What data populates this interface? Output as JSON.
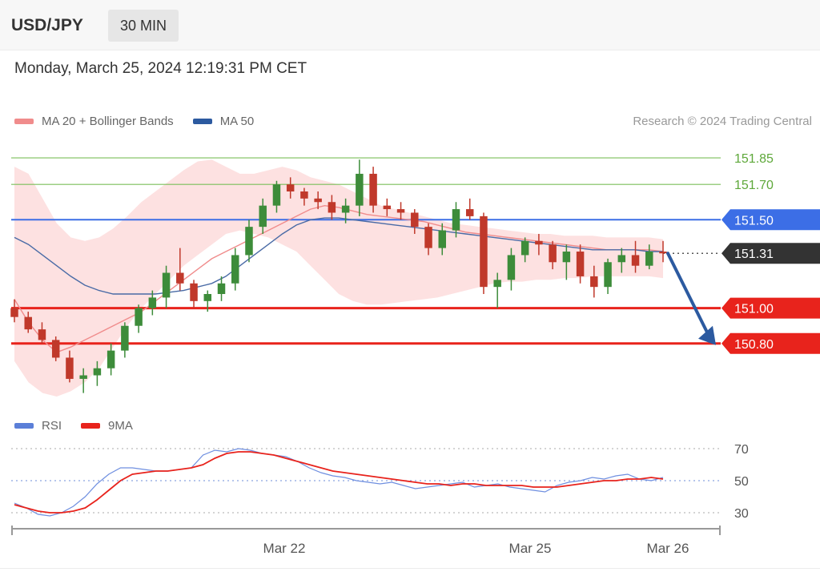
{
  "header": {
    "symbol": "USD/JPY",
    "timeframe": "30 MIN"
  },
  "datetime": "Monday, March 25, 2024 12:19:31 PM CET",
  "legend": [
    {
      "label": "MA 20 + Bollinger Bands",
      "color": "#f08c8c"
    },
    {
      "label": "MA 50",
      "color": "#2c5aa0"
    }
  ],
  "copyright": "Research © 2024 Trading Central",
  "rsi_legend": [
    {
      "label": "RSI",
      "color": "#5b7fd8"
    },
    {
      "label": "9MA",
      "color": "#e8231c"
    }
  ],
  "colors": {
    "up": "#3d8c3a",
    "down": "#c0392b",
    "support": "#e8231c",
    "resistance": "#7bbf5a",
    "pivot": "#3c6ee6",
    "current": "#333333",
    "forecast": "#2c5aa0"
  },
  "chart_data": [
    {
      "type": "line",
      "title": "",
      "xlabel": "",
      "ylabel": "",
      "ylim": [
        150.5,
        151.95
      ],
      "x_ticks": [
        "Mar 22",
        "Mar 25",
        "Mar 26"
      ],
      "levels": [
        {
          "value": 151.85,
          "label": "151.85",
          "kind": "resistance"
        },
        {
          "value": 151.7,
          "label": "151.70",
          "kind": "resistance"
        },
        {
          "value": 151.5,
          "label": "151.50",
          "kind": "pivot"
        },
        {
          "value": 151.31,
          "label": "151.31",
          "kind": "current"
        },
        {
          "value": 151.0,
          "label": "151.00",
          "kind": "support"
        },
        {
          "value": 150.8,
          "label": "150.80",
          "kind": "support"
        }
      ],
      "forecast": {
        "from": 151.31,
        "to": 150.8,
        "direction": "down"
      },
      "series": [
        {
          "name": "MA 20 + Bollinger Bands",
          "values": [
            151.05,
            150.92,
            150.82,
            150.75,
            150.78,
            150.82,
            150.86,
            150.9,
            150.94,
            150.98,
            151.04,
            151.1,
            151.16,
            151.22,
            151.28,
            151.32,
            151.36,
            151.4,
            151.44,
            151.48,
            151.52,
            151.56,
            151.58,
            151.57,
            151.55,
            151.53,
            151.52,
            151.51,
            151.5,
            151.49,
            151.47,
            151.45,
            151.43,
            151.42,
            151.41,
            151.4,
            151.39,
            151.38,
            151.37,
            151.36,
            151.35,
            151.34,
            151.33,
            151.33,
            151.33,
            151.33,
            151.32
          ]
        },
        {
          "name": "MA 50",
          "values": [
            151.4,
            151.36,
            151.3,
            151.24,
            151.18,
            151.13,
            151.1,
            151.08,
            151.08,
            151.08,
            151.08,
            151.09,
            151.1,
            151.12,
            151.14,
            151.18,
            151.24,
            151.3,
            151.36,
            151.42,
            151.47,
            151.5,
            151.51,
            151.51,
            151.5,
            151.49,
            151.48,
            151.47,
            151.46,
            151.45,
            151.44,
            151.43,
            151.42,
            151.41,
            151.4,
            151.39,
            151.38,
            151.37,
            151.36,
            151.35,
            151.34,
            151.33,
            151.33,
            151.33,
            151.33,
            151.32,
            151.32
          ]
        },
        {
          "name": "Bollinger upper",
          "values": [
            151.8,
            151.76,
            151.62,
            151.48,
            151.4,
            151.38,
            151.4,
            151.45,
            151.52,
            151.6,
            151.66,
            151.72,
            151.78,
            151.83,
            151.84,
            151.8,
            151.76,
            151.76,
            151.78,
            151.8,
            151.78,
            151.74,
            151.72,
            151.7,
            151.66,
            151.62,
            151.58,
            151.56,
            151.54,
            151.52,
            151.5,
            151.48,
            151.47,
            151.46,
            151.45,
            151.44,
            151.43,
            151.42,
            151.42,
            151.41,
            151.41,
            151.41,
            151.4,
            151.4,
            151.4,
            151.4,
            151.39
          ]
        },
        {
          "name": "Bollinger lower",
          "values": [
            150.7,
            150.58,
            150.52,
            150.5,
            150.53,
            150.58,
            150.66,
            150.78,
            150.9,
            151.0,
            151.08,
            151.16,
            151.24,
            151.3,
            151.36,
            151.42,
            151.44,
            151.42,
            151.4,
            151.36,
            151.32,
            151.24,
            151.16,
            151.08,
            151.04,
            151.02,
            151.02,
            151.03,
            151.04,
            151.05,
            151.06,
            151.08,
            151.1,
            151.12,
            151.14,
            151.15,
            151.15,
            151.16,
            151.16,
            151.17,
            151.17,
            151.18,
            151.18,
            151.18,
            151.18,
            151.18,
            151.17
          ]
        }
      ],
      "candles": [
        [
          151.0,
          151.05,
          150.92,
          150.95
        ],
        [
          150.95,
          150.98,
          150.86,
          150.88
        ],
        [
          150.88,
          150.92,
          150.8,
          150.82
        ],
        [
          150.82,
          150.84,
          150.7,
          150.72
        ],
        [
          150.72,
          150.76,
          150.58,
          150.6
        ],
        [
          150.6,
          150.66,
          150.52,
          150.62
        ],
        [
          150.62,
          150.7,
          150.56,
          150.66
        ],
        [
          150.66,
          150.8,
          150.62,
          150.76
        ],
        [
          150.76,
          150.92,
          150.72,
          150.9
        ],
        [
          150.9,
          151.02,
          150.86,
          151.0
        ],
        [
          151.0,
          151.1,
          150.96,
          151.06
        ],
        [
          151.06,
          151.24,
          151.0,
          151.2
        ],
        [
          151.2,
          151.34,
          151.1,
          151.14
        ],
        [
          151.14,
          151.16,
          151.0,
          151.04
        ],
        [
          151.04,
          151.1,
          150.98,
          151.08
        ],
        [
          151.08,
          151.18,
          151.04,
          151.14
        ],
        [
          151.14,
          151.34,
          151.1,
          151.3
        ],
        [
          151.3,
          151.5,
          151.26,
          151.46
        ],
        [
          151.46,
          151.62,
          151.42,
          151.58
        ],
        [
          151.58,
          151.72,
          151.54,
          151.7
        ],
        [
          151.7,
          151.74,
          151.62,
          151.66
        ],
        [
          151.66,
          151.68,
          151.58,
          151.62
        ],
        [
          151.62,
          151.66,
          151.56,
          151.6
        ],
        [
          151.6,
          151.64,
          151.5,
          151.54
        ],
        [
          151.54,
          151.62,
          151.48,
          151.58
        ],
        [
          151.58,
          151.84,
          151.52,
          151.76
        ],
        [
          151.76,
          151.8,
          151.54,
          151.58
        ],
        [
          151.58,
          151.62,
          151.52,
          151.56
        ],
        [
          151.56,
          151.6,
          151.5,
          151.54
        ],
        [
          151.54,
          151.56,
          151.42,
          151.46
        ],
        [
          151.46,
          151.48,
          151.3,
          151.34
        ],
        [
          151.34,
          151.48,
          151.3,
          151.44
        ],
        [
          151.44,
          151.6,
          151.4,
          151.56
        ],
        [
          151.56,
          151.62,
          151.5,
          151.52
        ],
        [
          151.52,
          151.54,
          151.08,
          151.12
        ],
        [
          151.12,
          151.2,
          151.0,
          151.16
        ],
        [
          151.16,
          151.34,
          151.1,
          151.3
        ],
        [
          151.3,
          151.4,
          151.26,
          151.38
        ],
        [
          151.38,
          151.42,
          151.3,
          151.36
        ],
        [
          151.36,
          151.38,
          151.22,
          151.26
        ],
        [
          151.26,
          151.36,
          151.16,
          151.32
        ],
        [
          151.32,
          151.36,
          151.14,
          151.18
        ],
        [
          151.18,
          151.24,
          151.06,
          151.12
        ],
        [
          151.12,
          151.28,
          151.08,
          151.26
        ],
        [
          151.26,
          151.34,
          151.2,
          151.3
        ],
        [
          151.3,
          151.38,
          151.2,
          151.24
        ],
        [
          151.24,
          151.36,
          151.22,
          151.32
        ],
        [
          151.32,
          151.38,
          151.26,
          151.31
        ]
      ]
    },
    {
      "type": "line",
      "title": "",
      "ylim": [
        20,
        75
      ],
      "y_ticks": [
        70,
        50,
        30
      ],
      "series": [
        {
          "name": "RSI",
          "values": [
            36,
            33,
            29,
            28,
            30,
            34,
            40,
            48,
            54,
            58,
            58,
            57,
            56,
            56,
            57,
            58,
            66,
            69,
            68,
            70,
            69,
            67,
            66,
            65,
            62,
            58,
            55,
            53,
            52,
            50,
            49,
            48,
            49,
            47,
            45,
            46,
            47,
            48,
            49,
            46,
            47,
            48,
            46,
            45,
            44,
            43,
            47,
            49,
            50,
            52,
            51,
            53,
            54,
            51,
            50,
            52
          ]
        },
        {
          "name": "9MA",
          "values": [
            35,
            33,
            31,
            30,
            30,
            31,
            33,
            38,
            44,
            50,
            54,
            55,
            56,
            56,
            57,
            58,
            60,
            64,
            67,
            68,
            68,
            67,
            66,
            64,
            62,
            60,
            58,
            56,
            55,
            54,
            53,
            52,
            51,
            50,
            49,
            48,
            48,
            47,
            48,
            48,
            47,
            47,
            47,
            47,
            46,
            46,
            46,
            47,
            48,
            49,
            50,
            50,
            51,
            51,
            52,
            51
          ]
        }
      ]
    }
  ]
}
